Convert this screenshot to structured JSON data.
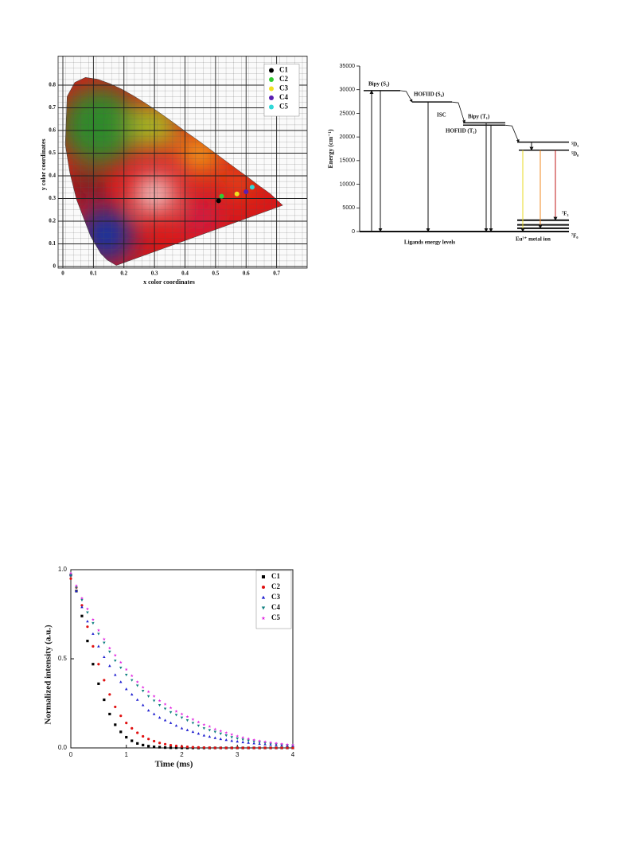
{
  "chart_data": [
    {
      "type": "scatter",
      "xlabel": "x color coordinates",
      "ylabel": "y color coordinates",
      "xlim": [
        0,
        0.8
      ],
      "ylim": [
        0,
        0.9
      ],
      "xticks": [
        0,
        0.1,
        0.2,
        0.3,
        0.4,
        0.5,
        0.6,
        0.7
      ],
      "yticks": [
        0,
        0.1,
        0.2,
        0.3,
        0.4,
        0.5,
        0.6,
        0.7,
        0.8
      ],
      "grid": true,
      "legend": "upper right",
      "series": [
        {
          "name": "C1",
          "color": "#000000",
          "marker": "circle",
          "x": [
            0.51
          ],
          "values": [
            0.29
          ]
        },
        {
          "name": "C2",
          "color": "#33cc33",
          "marker": "circle",
          "x": [
            0.52
          ],
          "values": [
            0.31
          ]
        },
        {
          "name": "C3",
          "color": "#f0e020",
          "marker": "circle",
          "x": [
            0.57
          ],
          "values": [
            0.32
          ]
        },
        {
          "name": "C4",
          "color": "#5a1fb0",
          "marker": "circle",
          "x": [
            0.6
          ],
          "values": [
            0.33
          ]
        },
        {
          "name": "C5",
          "color": "#30d8d8",
          "marker": "circle",
          "x": [
            0.62
          ],
          "values": [
            0.35
          ]
        }
      ]
    },
    {
      "type": "energy-level",
      "ylabel": "Energy (cm⁻¹)",
      "ylim": [
        0,
        35000
      ],
      "yticks": [
        0,
        5000,
        10000,
        15000,
        20000,
        25000,
        30000,
        35000
      ],
      "levels": [
        {
          "label": "Bipy (S₁)",
          "energy": 29800
        },
        {
          "label": "HOFIID (S₁)",
          "energy": 27400
        },
        {
          "label": "Bipy (T₁)",
          "energy": 23000
        },
        {
          "label": "HOFIID (T₁)",
          "energy": 22500
        },
        {
          "label": "⁵D₁",
          "energy": 18900
        },
        {
          "label": "⁵D₀",
          "energy": 17200
        },
        {
          "label": "⁷F₃",
          "energy": 2400
        },
        {
          "label": null,
          "energy": 1400
        },
        {
          "label": null,
          "energy": 700
        },
        {
          "label": "⁷F₀",
          "energy": 0
        }
      ],
      "annotations": [
        "ISC"
      ],
      "group_labels": [
        "Ligands energy levels",
        "Eu³⁺ metal ion"
      ]
    },
    {
      "type": "scatter",
      "xlabel": "Time (ms)",
      "ylabel": "Normalized intensity (a.u.)",
      "xlim": [
        0,
        4
      ],
      "ylim": [
        0,
        1
      ],
      "xticks": [
        0,
        1,
        2,
        3,
        4
      ],
      "yticks": [
        {
          "value": 0,
          "label": "0.0"
        },
        {
          "value": 0.5,
          "label": "0.5"
        },
        {
          "value": 1,
          "label": "1.0"
        }
      ],
      "grid": false,
      "legend": "upper right",
      "x": [
        0,
        0.1,
        0.2,
        0.3,
        0.4,
        0.5,
        0.6,
        0.7,
        0.8,
        0.9,
        1,
        1.1,
        1.2,
        1.3,
        1.4,
        1.5,
        1.6,
        1.7,
        1.8,
        1.9,
        2,
        2.1,
        2.2,
        2.3,
        2.4,
        2.5,
        2.6,
        2.7,
        2.8,
        2.9,
        3,
        3.1,
        3.2,
        3.3,
        3.4,
        3.5,
        3.6,
        3.7,
        3.8,
        3.9,
        4
      ],
      "series": [
        {
          "name": "C1",
          "color": "#000000",
          "marker": "square",
          "values": [
            0.97,
            0.88,
            0.74,
            0.6,
            0.47,
            0.36,
            0.27,
            0.19,
            0.13,
            0.09,
            0.06,
            0.04,
            0.025,
            0.016,
            0.01,
            0.006,
            0.004,
            0.002,
            0.001,
            0.001,
            0,
            0,
            0,
            0,
            0,
            0,
            0,
            0,
            0,
            0,
            0,
            0,
            0,
            0,
            0,
            0,
            0,
            0,
            0,
            0,
            0
          ]
        },
        {
          "name": "C2",
          "color": "#e01010",
          "marker": "circle",
          "values": [
            0.95,
            0.9,
            0.8,
            0.68,
            0.57,
            0.47,
            0.38,
            0.3,
            0.23,
            0.18,
            0.14,
            0.11,
            0.085,
            0.065,
            0.05,
            0.038,
            0.028,
            0.021,
            0.015,
            0.011,
            0.008,
            0.006,
            0.004,
            0.003,
            0.002,
            0.001,
            0,
            0,
            0,
            0,
            0,
            0,
            0,
            0,
            0,
            0,
            0,
            0,
            0,
            0,
            0
          ]
        },
        {
          "name": "C3",
          "color": "#2020d0",
          "marker": "triangle-up",
          "values": [
            0.97,
            0.88,
            0.79,
            0.71,
            0.64,
            0.57,
            0.51,
            0.46,
            0.41,
            0.37,
            0.33,
            0.3,
            0.27,
            0.24,
            0.21,
            0.19,
            0.17,
            0.155,
            0.14,
            0.125,
            0.11,
            0.1,
            0.09,
            0.08,
            0.07,
            0.063,
            0.056,
            0.05,
            0.045,
            0.04,
            0.036,
            0.032,
            0.029,
            0.026,
            0.023,
            0.02,
            0.018,
            0.016,
            0.014,
            0.013,
            0.012
          ]
        },
        {
          "name": "C4",
          "color": "#108080",
          "marker": "triangle-down",
          "values": [
            0.97,
            0.9,
            0.83,
            0.76,
            0.7,
            0.64,
            0.59,
            0.54,
            0.49,
            0.45,
            0.41,
            0.38,
            0.35,
            0.32,
            0.29,
            0.265,
            0.24,
            0.22,
            0.2,
            0.185,
            0.17,
            0.155,
            0.14,
            0.125,
            0.11,
            0.1,
            0.09,
            0.08,
            0.07,
            0.06,
            0.053,
            0.047,
            0.041,
            0.036,
            0.031,
            0.027,
            0.023,
            0.02,
            0.017,
            0.015,
            0.013
          ]
        },
        {
          "name": "C5",
          "color": "#e020e0",
          "marker": "star",
          "values": [
            0.98,
            0.91,
            0.84,
            0.78,
            0.72,
            0.66,
            0.61,
            0.56,
            0.52,
            0.48,
            0.44,
            0.405,
            0.37,
            0.34,
            0.315,
            0.29,
            0.265,
            0.245,
            0.225,
            0.205,
            0.19,
            0.175,
            0.16,
            0.145,
            0.13,
            0.12,
            0.105,
            0.095,
            0.085,
            0.075,
            0.066,
            0.058,
            0.051,
            0.045,
            0.039,
            0.034,
            0.03,
            0.026,
            0.022,
            0.019,
            0.016
          ]
        }
      ]
    }
  ]
}
